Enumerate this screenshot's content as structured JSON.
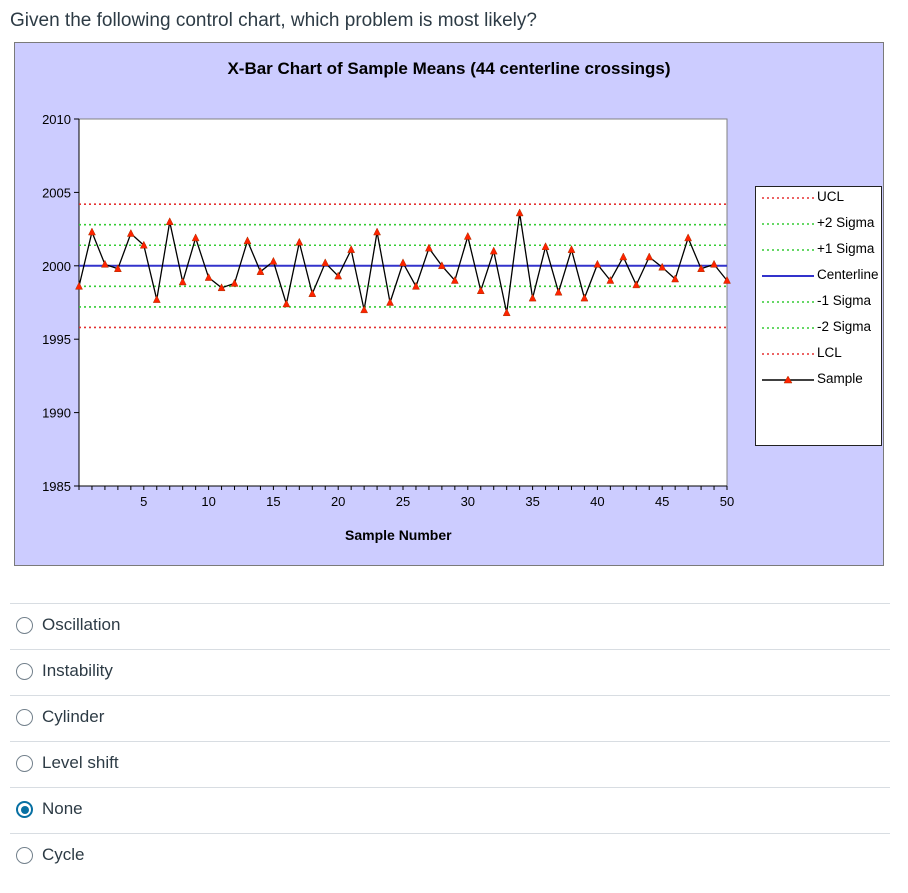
{
  "question": "Given the following control chart, which problem is most likely?",
  "options": [
    {
      "label": "Oscillation",
      "selected": false
    },
    {
      "label": "Instability",
      "selected": false
    },
    {
      "label": "Cylinder",
      "selected": false
    },
    {
      "label": "Level shift",
      "selected": false
    },
    {
      "label": "None",
      "selected": true
    },
    {
      "label": "Cycle",
      "selected": false
    }
  ],
  "chart_data": {
    "type": "line",
    "title": "X-Bar Chart of Sample Means (44 centerline crossings)",
    "xlabel": "Sample Number",
    "ylabel": "",
    "xlim": [
      0,
      50
    ],
    "ylim": [
      1985,
      2010
    ],
    "x_ticks": [
      5,
      10,
      15,
      20,
      25,
      30,
      35,
      40,
      45,
      50
    ],
    "y_ticks": [
      1985,
      1990,
      1995,
      2000,
      2005,
      2010
    ],
    "legend_position": "right",
    "control_limits": [
      {
        "name": "UCL",
        "value": 2004.2,
        "color": "#e53030",
        "style": "dotted"
      },
      {
        "name": "+2 Sigma",
        "value": 2002.8,
        "color": "#33cc33",
        "style": "dotted"
      },
      {
        "name": "+1 Sigma",
        "value": 2001.4,
        "color": "#33cc33",
        "style": "dotted"
      },
      {
        "name": "Centerline",
        "value": 2000.0,
        "color": "#3333cc",
        "style": "solid"
      },
      {
        "name": "-1 Sigma",
        "value": 1998.6,
        "color": "#33cc33",
        "style": "dotted"
      },
      {
        "name": "-2 Sigma",
        "value": 1997.2,
        "color": "#33cc33",
        "style": "dotted"
      },
      {
        "name": "LCL",
        "value": 1995.8,
        "color": "#e53030",
        "style": "dotted"
      }
    ],
    "series": [
      {
        "name": "Sample",
        "color": "#000000",
        "marker_color": "#ff2200",
        "x": [
          0,
          1,
          2,
          3,
          4,
          5,
          6,
          7,
          8,
          9,
          10,
          11,
          12,
          13,
          14,
          15,
          16,
          17,
          18,
          19,
          20,
          21,
          22,
          23,
          24,
          25,
          26,
          27,
          28,
          29,
          30,
          31,
          32,
          33,
          34,
          35,
          36,
          37,
          38,
          39,
          40,
          41,
          42,
          43,
          44,
          45,
          46,
          47,
          48,
          49,
          50
        ],
        "values": [
          1998.6,
          2002.3,
          2000.1,
          1999.8,
          2002.2,
          2001.4,
          1997.7,
          2003.0,
          1998.9,
          2001.9,
          1999.2,
          1998.5,
          1998.8,
          2001.7,
          1999.6,
          2000.3,
          1997.4,
          2001.6,
          1998.1,
          2000.2,
          1999.3,
          2001.1,
          1997.0,
          2002.3,
          1997.5,
          2000.2,
          1998.6,
          2001.2,
          2000.0,
          1999.0,
          2002.0,
          1998.3,
          2001.0,
          1996.8,
          2003.6,
          1997.8,
          2001.3,
          1998.2,
          2001.1,
          1997.8,
          2000.1,
          1999.0,
          2000.6,
          1998.7,
          2000.6,
          1999.9,
          1999.1,
          2001.9,
          1999.8,
          2000.1,
          1999.0
        ]
      }
    ]
  }
}
